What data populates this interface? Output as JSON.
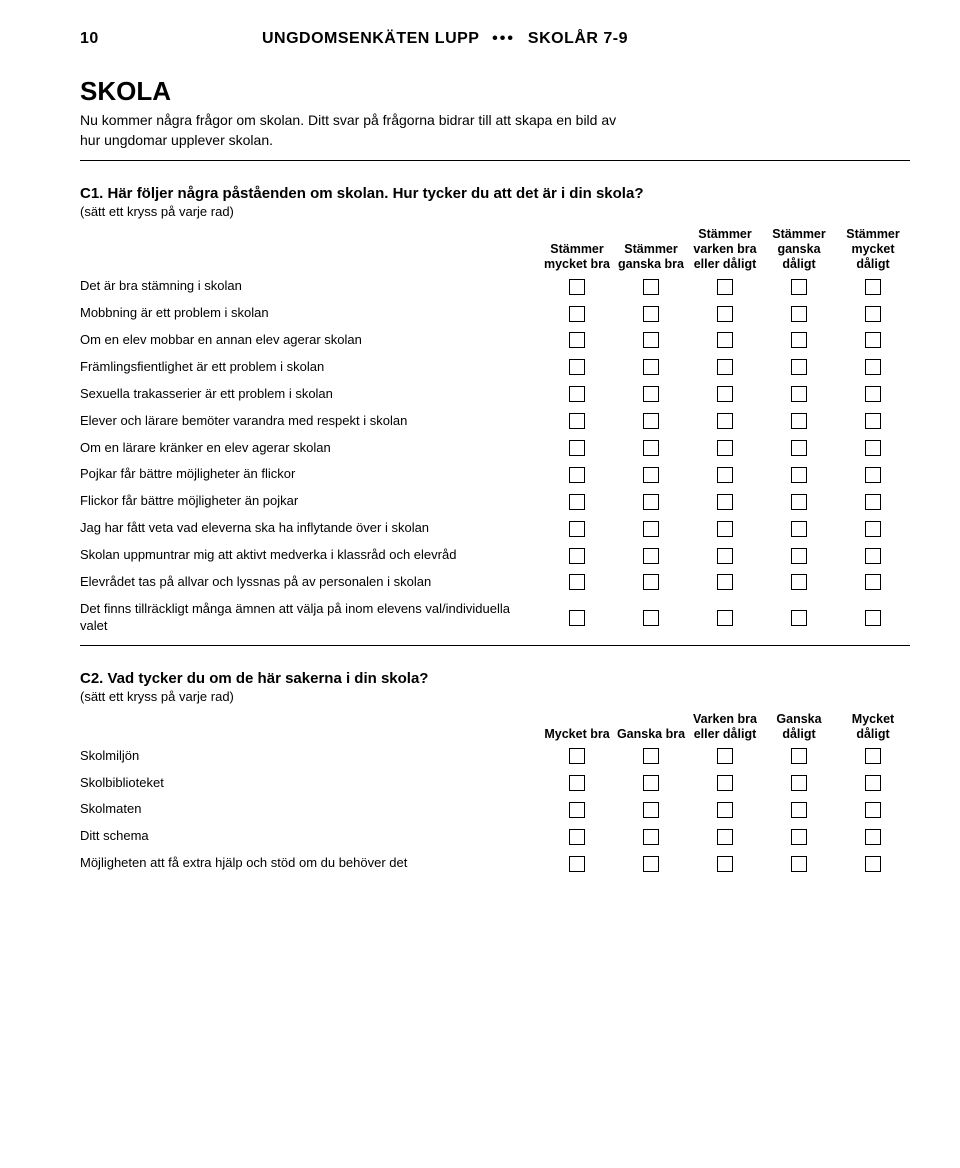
{
  "header": {
    "page_number": "10",
    "title_left": "UNGDOMSENKÄTEN LUPP",
    "title_right": "SKOLÅR 7-9"
  },
  "section": {
    "title": "SKOLA",
    "description": "Nu kommer några frågor om skolan. Ditt svar på frågorna bidrar till att skapa en bild av hur ungdomar upplever skolan."
  },
  "c1": {
    "title": "C1. Här följer några påståenden om skolan. Hur tycker du att det är i din skola?",
    "hint": "(sätt ett kryss på varje rad)",
    "columns": [
      "Stämmer mycket bra",
      "Stämmer ganska bra",
      "Stämmer varken bra eller dåligt",
      "Stämmer ganska dåligt",
      "Stämmer mycket dåligt"
    ],
    "rows": [
      "Det är bra stämning i skolan",
      "Mobbning är ett problem i skolan",
      "Om en elev mobbar en annan elev agerar skolan",
      "Främlingsfientlighet är ett problem i skolan",
      "Sexuella trakasserier är ett problem i skolan",
      "Elever och lärare bemöter varandra med respekt i skolan",
      "Om en lärare kränker en elev agerar skolan",
      "Pojkar får bättre möjligheter än flickor",
      "Flickor får bättre möjligheter än pojkar",
      "Jag har fått veta vad eleverna ska ha inflytande över i skolan",
      "Skolan uppmuntrar mig att aktivt medverka i klassråd och elevråd",
      "Elevrådet tas på allvar och lyssnas på av personalen i skolan",
      "Det finns tillräckligt många ämnen att välja på inom elevens val/individuella valet"
    ]
  },
  "c2": {
    "title": "C2. Vad tycker du om de här sakerna i din skola?",
    "hint": "(sätt ett kryss på varje rad)",
    "columns": [
      "Mycket bra",
      "Ganska bra",
      "Varken bra eller dåligt",
      "Ganska dåligt",
      "Mycket dåligt"
    ],
    "rows": [
      "Skolmiljön",
      "Skolbiblioteket",
      "Skolmaten",
      "Ditt schema",
      "Möjligheten att få extra hjälp och stöd om du behöver det"
    ]
  }
}
